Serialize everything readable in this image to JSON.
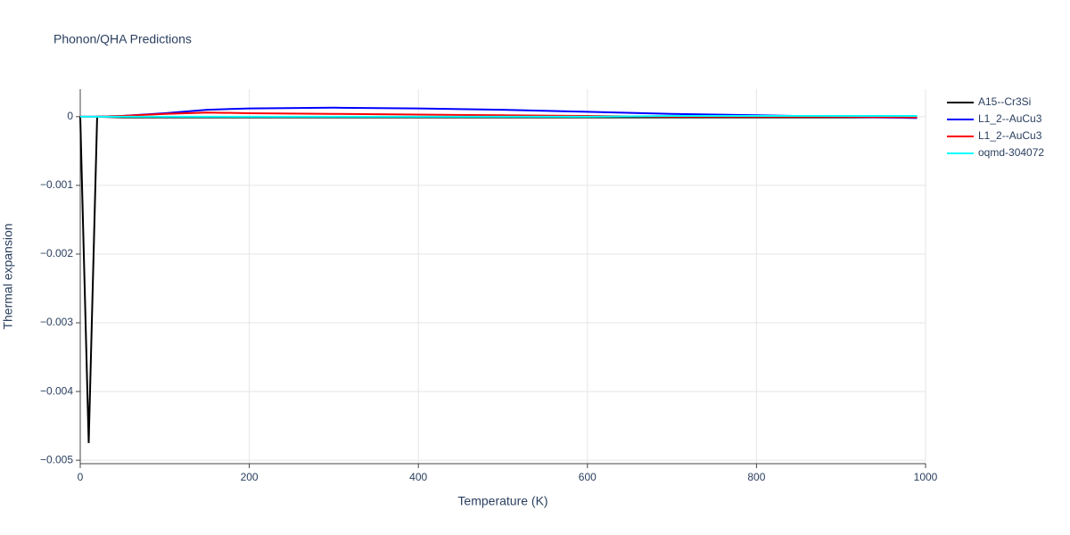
{
  "chart_data": {
    "type": "line",
    "title": "Phonon/QHA Predictions",
    "xlabel": "Temperature (K)",
    "ylabel": "Thermal expansion",
    "x": [
      0,
      10,
      20,
      50,
      100,
      150,
      200,
      300,
      400,
      500,
      600,
      700,
      800,
      900,
      990
    ],
    "series": [
      {
        "name": "A15--Cr3Si",
        "color": "#000000",
        "values": [
          0,
          -0.00475,
          0,
          -1e-05,
          -1e-05,
          -1e-05,
          -1e-05,
          -1e-05,
          -1e-05,
          -1e-05,
          -1e-05,
          -1e-05,
          -1e-05,
          -1e-05,
          -1e-05
        ]
      },
      {
        "name": "L1_2--AuCu3",
        "color": "#0000ff",
        "values": [
          0,
          0,
          0,
          1e-05,
          5e-05,
          0.0001,
          0.00012,
          0.00013,
          0.00012,
          0.0001,
          7e-05,
          4e-05,
          2e-05,
          0,
          -2e-05
        ]
      },
      {
        "name": "L1_2--AuCu3",
        "color": "#ff0000",
        "values": [
          0,
          0,
          0,
          1e-05,
          4e-05,
          6e-05,
          5e-05,
          4e-05,
          3e-05,
          2e-05,
          1e-05,
          0,
          0,
          0,
          -1e-05
        ]
      },
      {
        "name": "oqmd-304072",
        "color": "#00ffff",
        "values": [
          0,
          0,
          0,
          0,
          0,
          0,
          0,
          0,
          0,
          0,
          0,
          1e-05,
          1e-05,
          1e-05,
          1e-05
        ]
      }
    ],
    "xlim": [
      0,
      1000
    ],
    "xticks": [
      0,
      200,
      400,
      600,
      800,
      1000
    ],
    "ylim": [
      -0.00505,
      0.0004
    ],
    "yticks": [
      {
        "value": -0.005,
        "label": "−0.005"
      },
      {
        "value": -0.004,
        "label": "−0.004"
      },
      {
        "value": -0.003,
        "label": "−0.003"
      },
      {
        "value": -0.002,
        "label": "−0.002"
      },
      {
        "value": -0.001,
        "label": "−0.001"
      },
      0
    ],
    "grid": true
  }
}
